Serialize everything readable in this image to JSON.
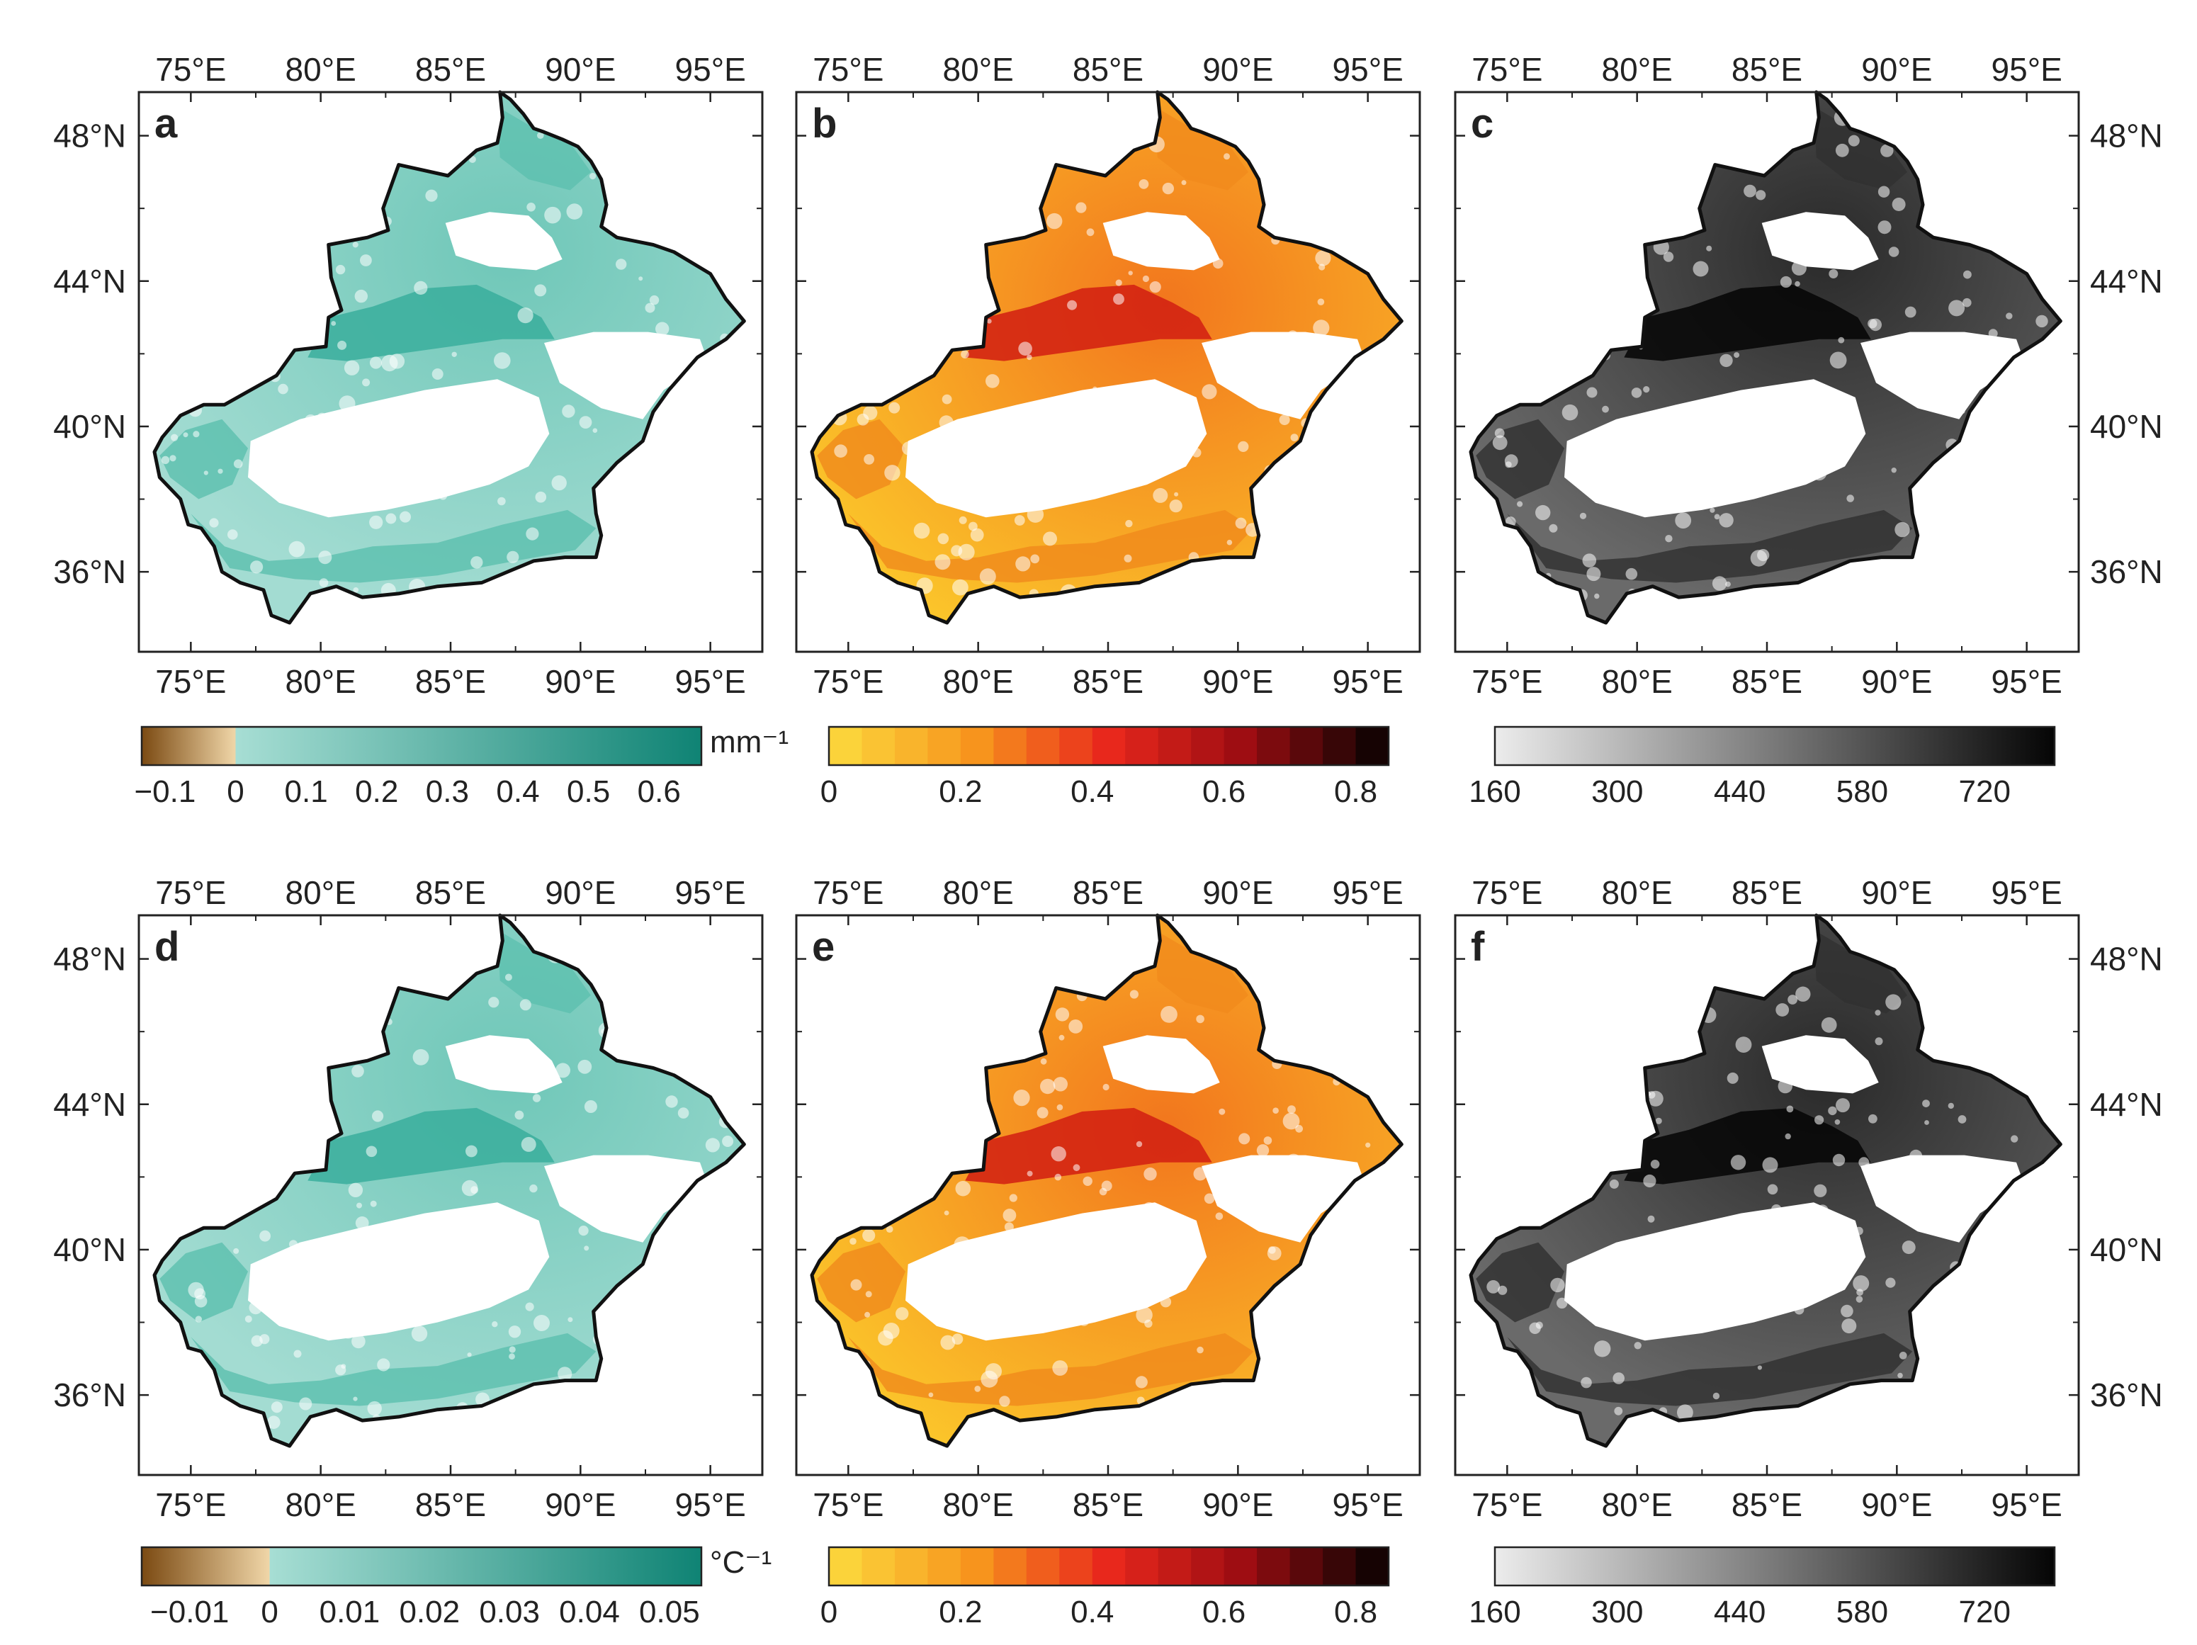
{
  "figure": {
    "lon_labels": [
      "75°E",
      "80°E",
      "85°E",
      "90°E",
      "95°E"
    ],
    "lat_labels": [
      "48°N",
      "44°N",
      "40°N",
      "36°N"
    ],
    "colors": {
      "teal_dark": "#0f8374",
      "teal_light": "#a7ded4",
      "brown_dark": "#7b4a12",
      "brown_light": "#e9c792",
      "yellow": "#f9c31b",
      "red": "#e0201b",
      "black": "#140505",
      "gray_light": "#e3e3e3",
      "gray_dark": "#0a0a0a",
      "boundary": "#111111"
    },
    "panels": [
      {
        "id": "a",
        "label": "a",
        "style": "teal"
      },
      {
        "id": "b",
        "label": "b",
        "style": "heat"
      },
      {
        "id": "c",
        "label": "c",
        "style": "gray"
      },
      {
        "id": "d",
        "label": "d",
        "style": "teal"
      },
      {
        "id": "e",
        "label": "e",
        "style": "heat"
      },
      {
        "id": "f",
        "label": "f",
        "style": "gray"
      }
    ],
    "colorbars": [
      {
        "id": "a",
        "type": "diverging",
        "unit": "mm⁻¹",
        "ticks": [
          "−0.1",
          "0",
          "0.1",
          "0.2",
          "0.3",
          "0.4",
          "0.5",
          "0.6"
        ],
        "range": [
          -0.133,
          0.66
        ],
        "tick_values": [
          -0.1,
          0,
          0.1,
          0.2,
          0.3,
          0.4,
          0.5,
          0.6
        ]
      },
      {
        "id": "b",
        "type": "heat",
        "unit": "",
        "ticks": [
          "0",
          "0.2",
          "0.4",
          "0.6",
          "0.8"
        ],
        "range": [
          0,
          0.85
        ],
        "tick_values": [
          0,
          0.2,
          0.4,
          0.6,
          0.8
        ]
      },
      {
        "id": "c",
        "type": "gray",
        "unit": "",
        "ticks": [
          "160",
          "300",
          "440",
          "580",
          "720"
        ],
        "range": [
          160,
          800
        ],
        "tick_values": [
          160,
          300,
          440,
          580,
          720
        ]
      },
      {
        "id": "d",
        "type": "diverging",
        "unit": "°C⁻¹",
        "ticks": [
          "−0.01",
          "0",
          "0.01",
          "0.02",
          "0.03",
          "0.04",
          "0.05"
        ],
        "range": [
          -0.016,
          0.054
        ],
        "tick_values": [
          -0.01,
          0,
          0.01,
          0.02,
          0.03,
          0.04,
          0.05
        ]
      },
      {
        "id": "e",
        "type": "heat",
        "unit": "",
        "ticks": [
          "0",
          "0.2",
          "0.4",
          "0.6",
          "0.8"
        ],
        "range": [
          0,
          0.85
        ],
        "tick_values": [
          0,
          0.2,
          0.4,
          0.6,
          0.8
        ]
      },
      {
        "id": "f",
        "type": "gray",
        "unit": "",
        "ticks": [
          "160",
          "300",
          "440",
          "580",
          "720"
        ],
        "range": [
          160,
          800
        ],
        "tick_values": [
          160,
          300,
          440,
          580,
          720
        ]
      }
    ]
  }
}
